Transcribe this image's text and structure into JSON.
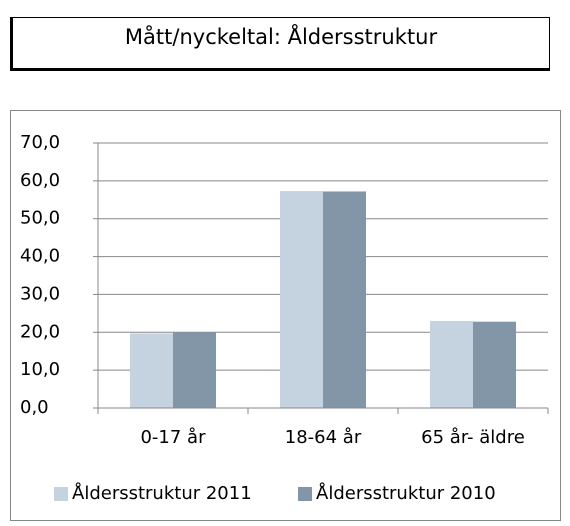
{
  "header": {
    "title": "Mått/nyckeltal: Åldersstruktur"
  },
  "chart_data": {
    "type": "bar",
    "categories": [
      "0-17 år",
      "18-64 år",
      "65 år- äldre"
    ],
    "series": [
      {
        "name": "Åldersstruktur 2011",
        "color": "#c5d3e0",
        "values": [
          19.7,
          57.3,
          23.0
        ]
      },
      {
        "name": "Åldersstruktur 2010",
        "color": "#8396a8",
        "values": [
          20.0,
          57.2,
          22.8
        ]
      }
    ],
    "ylim": [
      0,
      70
    ],
    "yticks": [
      {
        "value": 0,
        "label": "0,0"
      },
      {
        "value": 10,
        "label": "10,0"
      },
      {
        "value": 20,
        "label": "20,0"
      },
      {
        "value": 30,
        "label": "30,0"
      },
      {
        "value": 40,
        "label": "40,0"
      },
      {
        "value": 50,
        "label": "50,0"
      },
      {
        "value": 60,
        "label": "60,0"
      },
      {
        "value": 70,
        "label": "70,0"
      }
    ],
    "grid": true,
    "legend": "bottom"
  }
}
